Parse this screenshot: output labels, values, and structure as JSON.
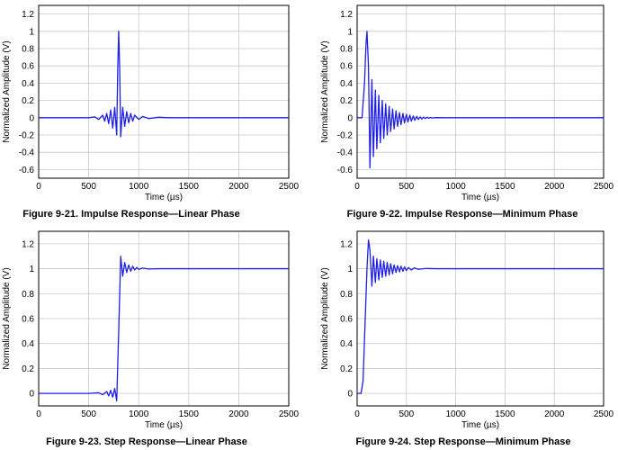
{
  "chart_data": [
    {
      "type": "line",
      "caption": "Figure 9-21. Impulse Response—Linear Phase",
      "xlabel": "Time (µs)",
      "ylabel": "Normalized Amplitude (V)",
      "xlim": [
        0,
        2500
      ],
      "ylim": [
        -0.7,
        1.3
      ],
      "xticks": [
        0,
        500,
        1000,
        1500,
        2000,
        2500
      ],
      "yticks": [
        -0.6,
        -0.4,
        -0.2,
        0,
        0.2,
        0.4,
        0.6,
        0.8,
        1,
        1.2
      ],
      "ytick_labels": [
        "-0.6",
        "-0.4",
        "-0.2",
        "0",
        "0.2",
        "0.4",
        "0.6",
        "0.8",
        "1",
        "1.2"
      ],
      "grid": true,
      "color": "#1f1fe6",
      "series": [
        {
          "x": [
            0,
            500,
            560,
            600,
            640,
            660,
            680,
            700,
            720,
            740,
            760,
            780,
            790,
            800,
            810,
            820,
            840,
            860,
            880,
            900,
            920,
            940,
            960,
            1000,
            1040,
            1100,
            1200,
            1300,
            2500
          ],
          "y": [
            0,
            0,
            0.01,
            -0.02,
            0.03,
            -0.04,
            0.05,
            -0.07,
            0.09,
            -0.12,
            0.12,
            -0.2,
            0.55,
            1.0,
            0.55,
            -0.22,
            0.12,
            -0.1,
            0.07,
            -0.06,
            0.05,
            -0.04,
            0.03,
            -0.02,
            0.015,
            -0.01,
            0.005,
            0,
            0
          ]
        }
      ]
    },
    {
      "type": "line",
      "caption": "Figure 9-22. Impulse Response—Minimum Phase",
      "xlabel": "Time (µs)",
      "ylabel": "Normalized Amplitude (V)",
      "xlim": [
        0,
        2500
      ],
      "ylim": [
        -0.7,
        1.3
      ],
      "xticks": [
        0,
        500,
        1000,
        1500,
        2000,
        2500
      ],
      "yticks": [
        -0.6,
        -0.4,
        -0.2,
        0,
        0.2,
        0.4,
        0.6,
        0.8,
        1,
        1.2
      ],
      "ytick_labels": [
        "-0.6",
        "-0.4",
        "-0.2",
        "0",
        "0.2",
        "0.4",
        "0.6",
        "0.8",
        "1",
        "1.2"
      ],
      "grid": true,
      "color": "#1f1fe6",
      "series": [
        {
          "x": [
            0,
            50,
            75,
            90,
            100,
            115,
            130,
            150,
            165,
            185,
            200,
            220,
            235,
            255,
            270,
            290,
            305,
            325,
            340,
            360,
            375,
            395,
            410,
            430,
            445,
            465,
            480,
            500,
            515,
            535,
            550,
            570,
            585,
            605,
            620,
            640,
            655,
            675,
            690,
            710,
            725,
            745,
            760,
            800,
            900,
            2500
          ],
          "y": [
            0,
            0,
            0.4,
            0.85,
            1.0,
            0.6,
            -0.58,
            0.44,
            -0.45,
            0.32,
            -0.36,
            0.26,
            -0.29,
            0.2,
            -0.24,
            0.16,
            -0.2,
            0.13,
            -0.16,
            0.1,
            -0.13,
            0.08,
            -0.1,
            0.06,
            -0.08,
            0.05,
            -0.06,
            0.04,
            -0.05,
            0.03,
            -0.04,
            0.02,
            -0.03,
            0.015,
            -0.02,
            0.01,
            -0.015,
            0.008,
            -0.01,
            0.005,
            -0.006,
            0.003,
            -0.003,
            0.001,
            0,
            0
          ]
        }
      ]
    },
    {
      "type": "line",
      "caption": "Figure 9-23. Step Response—Linear Phase",
      "xlabel": "Time (µs)",
      "ylabel": "Normalized Amplitude (V)",
      "xlim": [
        0,
        2500
      ],
      "ylim": [
        -0.1,
        1.3
      ],
      "xticks": [
        0,
        500,
        1000,
        1500,
        2000,
        2500
      ],
      "yticks": [
        0,
        0.2,
        0.4,
        0.6,
        0.8,
        1,
        1.2
      ],
      "ytick_labels": [
        "0",
        "0.2",
        "0.4",
        "0.6",
        "0.8",
        "1",
        "1.2"
      ],
      "grid": true,
      "color": "#1f1fe6",
      "series": [
        {
          "x": [
            0,
            500,
            600,
            640,
            680,
            700,
            720,
            740,
            760,
            780,
            800,
            820,
            840,
            860,
            880,
            900,
            920,
            940,
            960,
            980,
            1000,
            1040,
            1100,
            1200,
            2500
          ],
          "y": [
            0,
            0,
            0.005,
            -0.01,
            0.015,
            -0.02,
            0.025,
            -0.03,
            0.04,
            -0.06,
            0.5,
            1.1,
            0.94,
            1.05,
            0.97,
            1.03,
            0.98,
            1.02,
            0.99,
            1.01,
            0.995,
            1.005,
            0.998,
            1.0,
            1.0
          ]
        }
      ]
    },
    {
      "type": "line",
      "caption": "Figure 9-24. Step Response—Minimum Phase",
      "xlabel": "Time (µs)",
      "ylabel": "Normalized Amplitude (V)",
      "xlim": [
        0,
        2500
      ],
      "ylim": [
        -0.1,
        1.3
      ],
      "xticks": [
        0,
        500,
        1000,
        1500,
        2000,
        2500
      ],
      "yticks": [
        0,
        0.2,
        0.4,
        0.6,
        0.8,
        1,
        1.2
      ],
      "ytick_labels": [
        "0",
        "0.2",
        "0.4",
        "0.6",
        "0.8",
        "1",
        "1.2"
      ],
      "grid": true,
      "color": "#1f1fe6",
      "series": [
        {
          "x": [
            0,
            40,
            60,
            80,
            100,
            115,
            130,
            150,
            165,
            185,
            200,
            220,
            235,
            255,
            270,
            290,
            305,
            325,
            340,
            360,
            375,
            395,
            410,
            430,
            445,
            465,
            480,
            500,
            520,
            550,
            580,
            620,
            700,
            800,
            2500
          ],
          "y": [
            0,
            0,
            0.1,
            0.55,
            1.0,
            1.23,
            1.15,
            0.86,
            1.1,
            0.89,
            1.08,
            0.91,
            1.07,
            0.93,
            1.06,
            0.94,
            1.05,
            0.95,
            1.04,
            0.96,
            1.03,
            0.97,
            1.025,
            0.975,
            1.02,
            0.98,
            1.015,
            0.985,
            1.01,
            0.99,
            1.007,
            0.995,
            1.002,
            1.0,
            1.0
          ]
        }
      ]
    }
  ]
}
